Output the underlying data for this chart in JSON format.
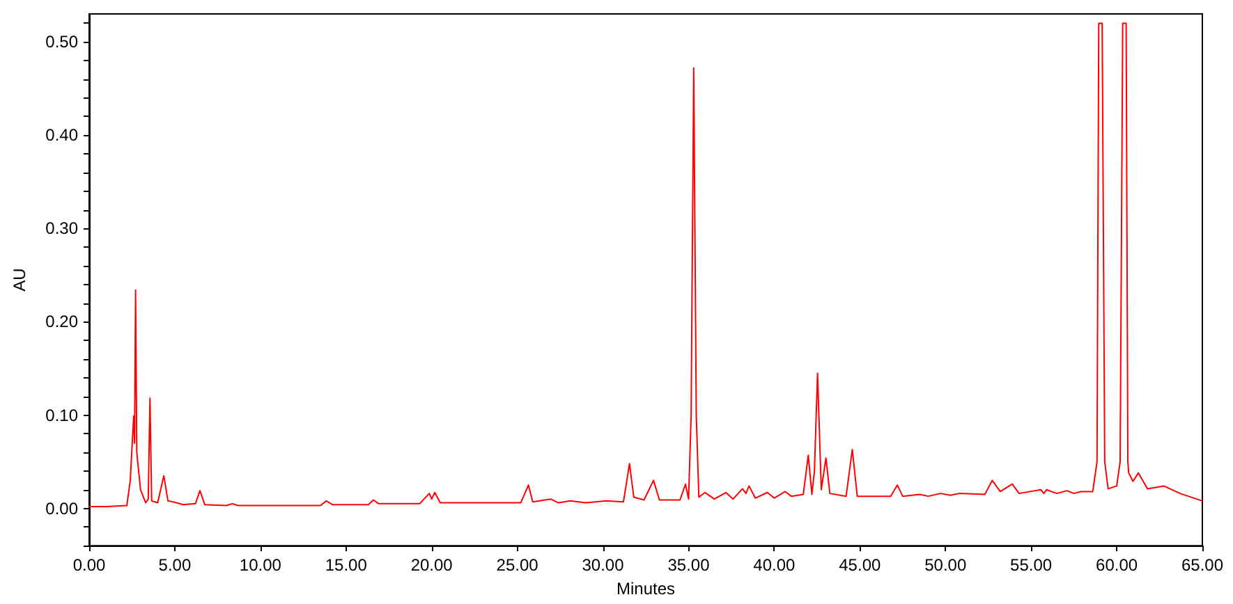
{
  "chart_data": {
    "type": "line",
    "xlabel": "Minutes",
    "ylabel": "AU",
    "grid": false,
    "marker": "none",
    "line_style": "solid",
    "xlim": [
      0,
      65
    ],
    "ylim": [
      -0.04,
      0.53
    ],
    "xticks": [
      {
        "value": 0,
        "label": "0.00"
      },
      {
        "value": 5,
        "label": "5.00"
      },
      {
        "value": 10,
        "label": "10.00"
      },
      {
        "value": 15,
        "label": "15.00"
      },
      {
        "value": 20,
        "label": "20.00"
      },
      {
        "value": 25,
        "label": "25.00"
      },
      {
        "value": 30,
        "label": "30.00"
      },
      {
        "value": 35,
        "label": "35.00"
      },
      {
        "value": 40,
        "label": "40.00"
      },
      {
        "value": 45,
        "label": "45.00"
      },
      {
        "value": 50,
        "label": "50.00"
      },
      {
        "value": 55,
        "label": "55.00"
      },
      {
        "value": 60,
        "label": "60.00"
      },
      {
        "value": 65,
        "label": "65.00"
      }
    ],
    "yticks": [
      {
        "value": -0.04,
        "label": null
      },
      {
        "value": -0.02,
        "label": null
      },
      {
        "value": 0,
        "label": "0.00"
      },
      {
        "value": 0.02,
        "label": null
      },
      {
        "value": 0.04,
        "label": null
      },
      {
        "value": 0.06,
        "label": null
      },
      {
        "value": 0.08,
        "label": null
      },
      {
        "value": 0.1,
        "label": "0.10"
      },
      {
        "value": 0.12,
        "label": null
      },
      {
        "value": 0.14,
        "label": null
      },
      {
        "value": 0.16,
        "label": null
      },
      {
        "value": 0.18,
        "label": null
      },
      {
        "value": 0.2,
        "label": "0.20"
      },
      {
        "value": 0.22,
        "label": null
      },
      {
        "value": 0.24,
        "label": null
      },
      {
        "value": 0.26,
        "label": null
      },
      {
        "value": 0.28,
        "label": null
      },
      {
        "value": 0.3,
        "label": "0.30"
      },
      {
        "value": 0.32,
        "label": null
      },
      {
        "value": 0.34,
        "label": null
      },
      {
        "value": 0.36,
        "label": null
      },
      {
        "value": 0.38,
        "label": null
      },
      {
        "value": 0.4,
        "label": "0.40"
      },
      {
        "value": 0.42,
        "label": null
      },
      {
        "value": 0.44,
        "label": null
      },
      {
        "value": 0.46,
        "label": null
      },
      {
        "value": 0.48,
        "label": null
      },
      {
        "value": 0.5,
        "label": "0.50"
      },
      {
        "value": 0.52,
        "label": null
      }
    ],
    "series": [
      {
        "color": "#ff0000",
        "x": [
          0,
          1,
          2.2,
          2.4,
          2.6,
          2.65,
          2.71,
          2.78,
          3.0,
          3.3,
          3.45,
          3.55,
          3.65,
          4.0,
          4.36,
          4.6,
          4.9,
          5.5,
          6.2,
          6.47,
          6.75,
          8.0,
          8.36,
          8.7,
          11,
          13.5,
          13.85,
          14.2,
          16.3,
          16.6,
          16.9,
          19.3,
          19.86,
          20.0,
          20.18,
          20.5,
          25.2,
          25.65,
          25.9,
          26.95,
          27.4,
          28.1,
          29,
          30.2,
          31.2,
          31.55,
          31.8,
          32.4,
          32.95,
          33.3,
          34.5,
          34.82,
          35.0,
          35.15,
          35.3,
          35.45,
          35.6,
          35.96,
          36.5,
          37.18,
          37.6,
          38.15,
          38.35,
          38.53,
          38.9,
          39.6,
          40.0,
          40.64,
          41.0,
          41.7,
          41.99,
          42.2,
          42.35,
          42.53,
          42.75,
          43.02,
          43.25,
          44.2,
          44.56,
          44.85,
          46.8,
          47.19,
          47.5,
          48.5,
          49.0,
          49.7,
          50.3,
          50.8,
          52.3,
          52.73,
          53.2,
          53.9,
          54.3,
          55.57,
          55.75,
          55.9,
          56.5,
          57.1,
          57.5,
          57.9,
          58.6,
          58.85,
          58.95,
          59.15,
          59.3,
          59.5,
          60.0,
          60.2,
          60.35,
          60.55,
          60.65,
          60.7,
          60.95,
          61.26,
          61.8,
          62.75,
          63.7,
          65
        ],
        "values": [
          0.002,
          0.002,
          0.003,
          0.03,
          0.099,
          0.07,
          0.234,
          0.06,
          0.02,
          0.006,
          0.01,
          0.118,
          0.008,
          0.006,
          0.035,
          0.008,
          0.007,
          0.004,
          0.005,
          0.019,
          0.004,
          0.003,
          0.005,
          0.003,
          0.003,
          0.003,
          0.008,
          0.004,
          0.004,
          0.009,
          0.005,
          0.005,
          0.016,
          0.01,
          0.017,
          0.006,
          0.006,
          0.025,
          0.007,
          0.01,
          0.006,
          0.008,
          0.006,
          0.008,
          0.007,
          0.048,
          0.012,
          0.009,
          0.03,
          0.009,
          0.009,
          0.026,
          0.01,
          0.1,
          0.472,
          0.1,
          0.012,
          0.017,
          0.01,
          0.017,
          0.01,
          0.021,
          0.016,
          0.024,
          0.011,
          0.017,
          0.011,
          0.018,
          0.013,
          0.015,
          0.057,
          0.015,
          0.04,
          0.145,
          0.02,
          0.054,
          0.016,
          0.013,
          0.063,
          0.013,
          0.013,
          0.025,
          0.013,
          0.015,
          0.013,
          0.016,
          0.014,
          0.016,
          0.015,
          0.03,
          0.018,
          0.026,
          0.016,
          0.02,
          0.016,
          0.02,
          0.016,
          0.019,
          0.016,
          0.018,
          0.018,
          0.05,
          0.52,
          0.52,
          0.05,
          0.021,
          0.024,
          0.05,
          0.52,
          0.52,
          0.05,
          0.038,
          0.029,
          0.038,
          0.021,
          0.024,
          0.016,
          0.008
        ]
      }
    ]
  }
}
